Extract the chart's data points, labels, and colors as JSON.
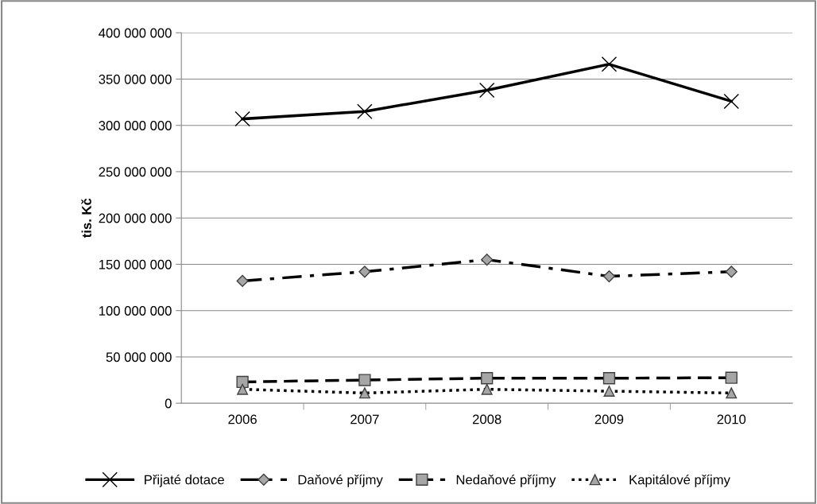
{
  "chart_data": {
    "type": "line",
    "ylabel": "tis. Kč",
    "categories": [
      "2006",
      "2007",
      "2008",
      "2009",
      "2010"
    ],
    "series": [
      {
        "name": "Přijaté dotace",
        "color": "#000000",
        "marker": "cross",
        "line_style": "solid",
        "values": [
          307000000,
          315000000,
          338000000,
          366000000,
          326000000
        ]
      },
      {
        "name": "Daňové příjmy",
        "color": "#000000",
        "marker": "diamond",
        "line_style": "dashdot",
        "values": [
          132000000,
          142000000,
          155000000,
          137000000,
          142000000
        ]
      },
      {
        "name": "Nedaňové příjmy",
        "color": "#000000",
        "marker": "square",
        "line_style": "dashed",
        "values": [
          23000000,
          25000000,
          27000000,
          27000000,
          27500000
        ]
      },
      {
        "name": "Kapitálové příjmy",
        "color": "#000000",
        "marker": "triangle",
        "line_style": "dotted",
        "values": [
          15000000,
          11000000,
          15000000,
          13000000,
          11000000
        ]
      }
    ],
    "ylim": [
      0,
      400000000
    ],
    "yticks": [
      {
        "value": 0,
        "label": "0"
      },
      {
        "value": 50000000,
        "label": "50 000 000"
      },
      {
        "value": 100000000,
        "label": "100 000 000"
      },
      {
        "value": 150000000,
        "label": "150 000 000"
      },
      {
        "value": 200000000,
        "label": "200 000 000"
      },
      {
        "value": 250000000,
        "label": "250 000 000"
      },
      {
        "value": 300000000,
        "label": "300 000 000"
      },
      {
        "value": 350000000,
        "label": "350 000 000"
      },
      {
        "value": 400000000,
        "label": "400 000 000"
      }
    ],
    "grid": "y",
    "legend": "bottom"
  }
}
